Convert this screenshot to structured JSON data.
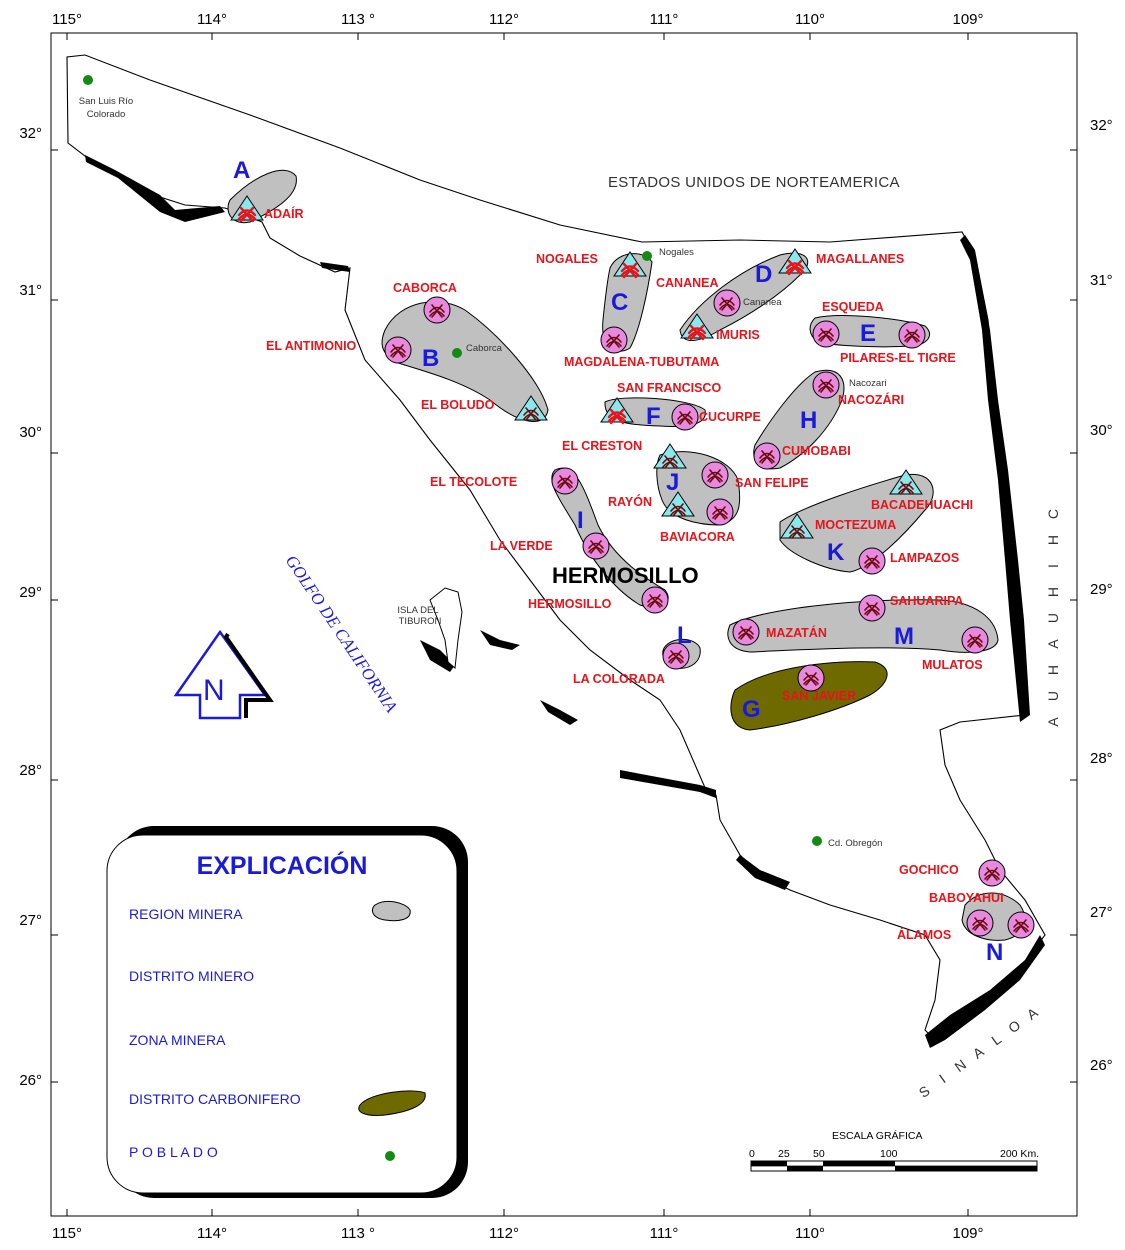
{
  "axes": {
    "top_lon": [
      "115°",
      "114°",
      "113 °",
      "112°",
      "111°",
      "110°",
      "109°"
    ],
    "bottom_lon": [
      "115°",
      "114°",
      "113 °",
      "112°",
      "111°",
      "110°",
      "109°"
    ],
    "left_lat": [
      "32°",
      "31°",
      "30°",
      "29°",
      "28°",
      "27°",
      "26°"
    ],
    "right_lat": [
      "32°",
      "31°",
      "30°",
      "29°",
      "28°",
      "27°",
      "26°"
    ]
  },
  "map": {
    "country": "ESTADOS UNIDOS DE NORTEAMERICA",
    "capital": "HERMOSILLO",
    "gulf": "GOLFO DE CALIFORNIA",
    "island": [
      "ISLA DEL",
      "TIBURON"
    ],
    "east_state": "CHIHUAHUA",
    "south_state": "SINALOA",
    "north_arrow": "N",
    "regions": [
      {
        "letter": "A"
      },
      {
        "letter": "B"
      },
      {
        "letter": "C"
      },
      {
        "letter": "D"
      },
      {
        "letter": "E"
      },
      {
        "letter": "F"
      },
      {
        "letter": "G"
      },
      {
        "letter": "H"
      },
      {
        "letter": "I"
      },
      {
        "letter": "J"
      },
      {
        "letter": "K"
      },
      {
        "letter": "L"
      },
      {
        "letter": "M"
      },
      {
        "letter": "N"
      }
    ],
    "towns": [
      {
        "name": "San Luis Río",
        "name2": "Colorado"
      },
      {
        "name": "Caborca"
      },
      {
        "name": "Nogales"
      },
      {
        "name": "Cananea"
      },
      {
        "name": "Nacozari"
      },
      {
        "name": "Cd. Obregón"
      }
    ],
    "districts": [
      {
        "label": "ADAÍR",
        "kind": "zone-red"
      },
      {
        "label": "CABORCA",
        "kind": "district"
      },
      {
        "label": "EL ANTIMONIO",
        "kind": "district"
      },
      {
        "label": "EL BOLUDO",
        "kind": "zone"
      },
      {
        "label": "NOGALES",
        "kind": "zone-red"
      },
      {
        "label": "CANANEA",
        "kind": "district"
      },
      {
        "label": "MAGALLANES",
        "kind": "zone-red"
      },
      {
        "label": "IMURIS",
        "kind": "zone-red"
      },
      {
        "label": "ESQUEDA",
        "kind": "district"
      },
      {
        "label": "PILARES-EL TIGRE",
        "kind": "district"
      },
      {
        "label": "MAGDALENA-TUBUTAMA",
        "kind": "district"
      },
      {
        "label": "SAN FRANCISCO",
        "kind": "zone-red"
      },
      {
        "label": "CUCURPE",
        "kind": "district"
      },
      {
        "label": "NACOZÁRI",
        "kind": "district"
      },
      {
        "label": "EL CRESTON",
        "kind": "zone"
      },
      {
        "label": "CUMOBABI",
        "kind": "district"
      },
      {
        "label": "EL TECOLOTE",
        "kind": "district"
      },
      {
        "label": "SAN FELIPE",
        "kind": "district"
      },
      {
        "label": "RAYÓN",
        "kind": "zone"
      },
      {
        "label": "BACADEHUACHI",
        "kind": "zone"
      },
      {
        "label": "BAVIACORA",
        "kind": "district"
      },
      {
        "label": "MOCTEZUMA",
        "kind": "zone"
      },
      {
        "label": "LA VERDE",
        "kind": "district"
      },
      {
        "label": "LAMPAZOS",
        "kind": "district"
      },
      {
        "label": "HERMOSILLO",
        "kind": "district"
      },
      {
        "label": "SAHUARIPA",
        "kind": "district"
      },
      {
        "label": "MAZATÁN",
        "kind": "district"
      },
      {
        "label": "MULATOS",
        "kind": "district"
      },
      {
        "label": "LA COLORADA",
        "kind": "district"
      },
      {
        "label": "SAN JAVIER",
        "kind": "district"
      },
      {
        "label": "GOCHICO",
        "kind": "district"
      },
      {
        "label": "BABOYAHUI",
        "kind": "district"
      },
      {
        "label": "ÁLAMOS",
        "kind": "district"
      },
      {
        "label": "",
        "kind": "zone"
      }
    ]
  },
  "legend": {
    "title": "EXPLICACIÓN",
    "items": [
      "REGION MINERA",
      "DISTRITO MINERO",
      "ZONA MINERA",
      "DISTRITO CARBONIFERO",
      "P O B L A D O"
    ]
  },
  "scale": {
    "title": "ESCALA GRÁFICA",
    "ticks": [
      "0",
      "25",
      "50",
      "100",
      "200 Km."
    ]
  },
  "colors": {
    "region_fill": "#c0c0c0",
    "coal_fill": "#6e6a00",
    "district_fill": "#e889e0",
    "zone_fill": "#8ae8ec",
    "label_red": "#e8141c",
    "label_blue": "#1a1adb",
    "town_green": "#138a13"
  }
}
